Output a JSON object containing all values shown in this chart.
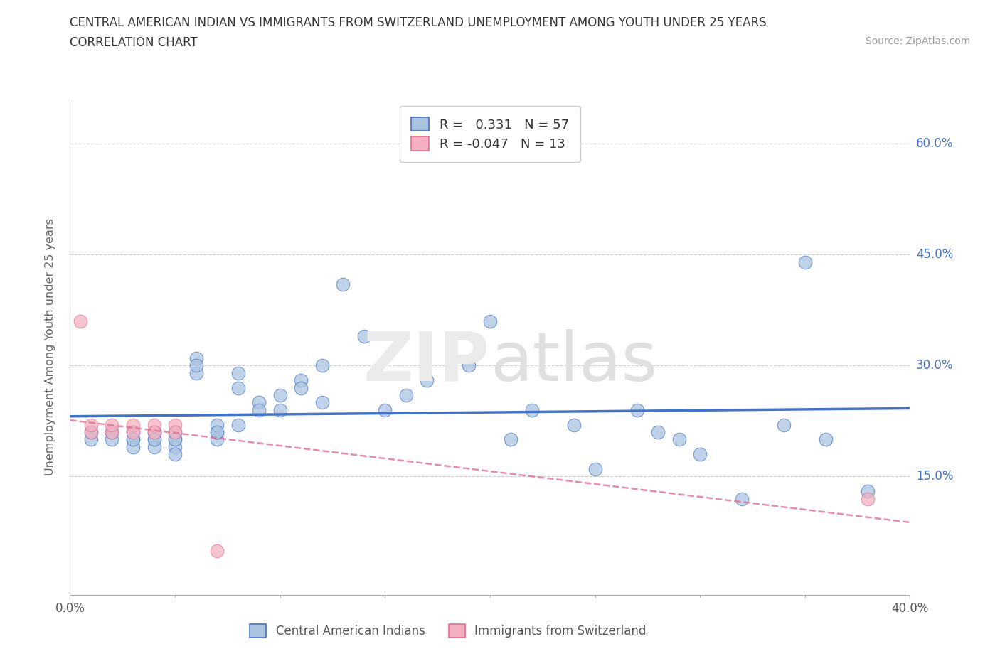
{
  "title_line1": "CENTRAL AMERICAN INDIAN VS IMMIGRANTS FROM SWITZERLAND UNEMPLOYMENT AMONG YOUTH UNDER 25 YEARS",
  "title_line2": "CORRELATION CHART",
  "source": "Source: ZipAtlas.com",
  "ylabel": "Unemployment Among Youth under 25 years",
  "xlim": [
    0.0,
    0.4
  ],
  "ylim": [
    -0.01,
    0.66
  ],
  "r1": 0.331,
  "n1": 57,
  "r2": -0.047,
  "n2": 13,
  "color_blue": "#aac4e0",
  "color_pink": "#f4b0c0",
  "line_blue": "#4472c4",
  "line_pink": "#e07090",
  "yticks": [
    0.0,
    0.15,
    0.3,
    0.45,
    0.6
  ],
  "ytick_labels": [
    "",
    "15.0%",
    "30.0%",
    "45.0%",
    "60.0%"
  ],
  "blue_scatter_x": [
    0.01,
    0.01,
    0.02,
    0.02,
    0.02,
    0.03,
    0.03,
    0.03,
    0.03,
    0.04,
    0.04,
    0.04,
    0.04,
    0.04,
    0.05,
    0.05,
    0.05,
    0.05,
    0.05,
    0.06,
    0.06,
    0.06,
    0.07,
    0.07,
    0.07,
    0.07,
    0.08,
    0.08,
    0.08,
    0.09,
    0.09,
    0.1,
    0.1,
    0.11,
    0.11,
    0.12,
    0.12,
    0.13,
    0.14,
    0.15,
    0.16,
    0.17,
    0.19,
    0.2,
    0.21,
    0.22,
    0.24,
    0.25,
    0.27,
    0.28,
    0.29,
    0.3,
    0.32,
    0.34,
    0.35,
    0.36,
    0.38
  ],
  "blue_scatter_y": [
    0.2,
    0.21,
    0.21,
    0.2,
    0.21,
    0.2,
    0.21,
    0.19,
    0.2,
    0.2,
    0.21,
    0.19,
    0.21,
    0.2,
    0.2,
    0.21,
    0.19,
    0.2,
    0.18,
    0.31,
    0.29,
    0.3,
    0.2,
    0.21,
    0.22,
    0.21,
    0.22,
    0.27,
    0.29,
    0.25,
    0.24,
    0.26,
    0.24,
    0.28,
    0.27,
    0.3,
    0.25,
    0.41,
    0.34,
    0.24,
    0.26,
    0.28,
    0.3,
    0.36,
    0.2,
    0.24,
    0.22,
    0.16,
    0.24,
    0.21,
    0.2,
    0.18,
    0.12,
    0.22,
    0.44,
    0.2,
    0.13
  ],
  "pink_scatter_x": [
    0.005,
    0.01,
    0.01,
    0.02,
    0.02,
    0.03,
    0.03,
    0.04,
    0.04,
    0.05,
    0.05,
    0.07,
    0.38
  ],
  "pink_scatter_y": [
    0.36,
    0.21,
    0.22,
    0.21,
    0.22,
    0.22,
    0.21,
    0.22,
    0.21,
    0.22,
    0.21,
    0.05,
    0.12
  ]
}
